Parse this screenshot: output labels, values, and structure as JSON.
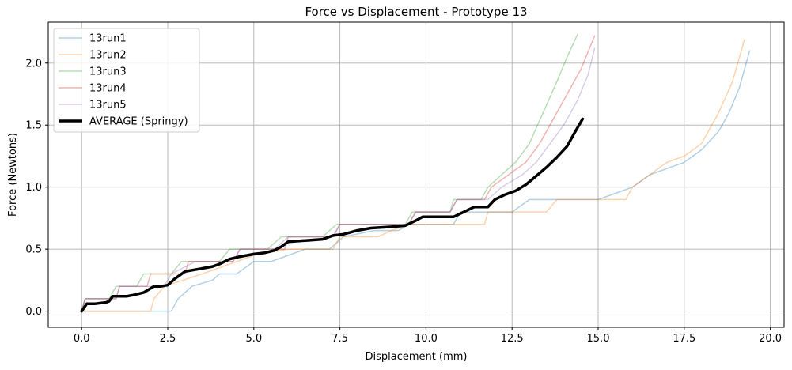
{
  "chart_data": {
    "type": "line",
    "title": "Force vs Displacement - Prototype 13",
    "xlabel": "Displacement (mm)",
    "ylabel": "Force (Newtons)",
    "xlim": [
      -0.97,
      20.4
    ],
    "ylim": [
      -0.13,
      2.33
    ],
    "xticks": [
      0.0,
      2.5,
      5.0,
      7.5,
      10.0,
      12.5,
      15.0,
      17.5,
      20.0
    ],
    "xtick_labels": [
      "0.0",
      "2.5",
      "5.0",
      "7.5",
      "10.0",
      "12.5",
      "15.0",
      "17.5",
      "20.0"
    ],
    "yticks": [
      0.0,
      0.5,
      1.0,
      1.5,
      2.0
    ],
    "ytick_labels": [
      "0.0",
      "0.5",
      "1.0",
      "1.5",
      "2.0"
    ],
    "grid": true,
    "legend_position": "top-left",
    "series": [
      {
        "name": "13run1",
        "color": "#1f77b4",
        "opacity": 0.35,
        "width": 1.5,
        "points": [
          [
            0,
            0
          ],
          [
            0.3,
            0
          ],
          [
            1.2,
            0
          ],
          [
            2.6,
            0
          ],
          [
            2.8,
            0.1
          ],
          [
            3.2,
            0.2
          ],
          [
            3.8,
            0.25
          ],
          [
            4.0,
            0.3
          ],
          [
            4.5,
            0.3
          ],
          [
            5.0,
            0.4
          ],
          [
            5.5,
            0.4
          ],
          [
            6.0,
            0.45
          ],
          [
            6.5,
            0.5
          ],
          [
            7.2,
            0.5
          ],
          [
            7.6,
            0.6
          ],
          [
            8.5,
            0.65
          ],
          [
            9.2,
            0.65
          ],
          [
            9.5,
            0.7
          ],
          [
            10.8,
            0.7
          ],
          [
            11.0,
            0.8
          ],
          [
            12.5,
            0.8
          ],
          [
            13.0,
            0.9
          ],
          [
            15.0,
            0.9
          ],
          [
            15.5,
            0.95
          ],
          [
            16.0,
            1.0
          ],
          [
            16.5,
            1.1
          ],
          [
            17.0,
            1.15
          ],
          [
            17.5,
            1.2
          ],
          [
            18.0,
            1.3
          ],
          [
            18.5,
            1.45
          ],
          [
            18.8,
            1.6
          ],
          [
            19.1,
            1.8
          ],
          [
            19.4,
            2.1
          ]
        ]
      },
      {
        "name": "13run2",
        "color": "#ff7f0e",
        "opacity": 0.35,
        "width": 1.5,
        "points": [
          [
            0,
            0
          ],
          [
            0.4,
            0.0
          ],
          [
            0.7,
            0.0
          ],
          [
            1.2,
            0
          ],
          [
            2.0,
            0
          ],
          [
            2.1,
            0.1
          ],
          [
            2.4,
            0.2
          ],
          [
            3.5,
            0.3
          ],
          [
            4.5,
            0.4
          ],
          [
            5.0,
            0.45
          ],
          [
            6.0,
            0.5
          ],
          [
            7.3,
            0.5
          ],
          [
            7.5,
            0.6
          ],
          [
            8.6,
            0.6
          ],
          [
            9.0,
            0.65
          ],
          [
            9.5,
            0.7
          ],
          [
            10.6,
            0.7
          ],
          [
            11.0,
            0.7
          ],
          [
            11.7,
            0.7
          ],
          [
            11.8,
            0.8
          ],
          [
            13.5,
            0.8
          ],
          [
            13.8,
            0.9
          ],
          [
            15.8,
            0.9
          ],
          [
            16.0,
            1.0
          ],
          [
            16.5,
            1.1
          ],
          [
            17.0,
            1.2
          ],
          [
            17.5,
            1.25
          ],
          [
            18.0,
            1.35
          ],
          [
            18.5,
            1.6
          ],
          [
            18.9,
            1.85
          ],
          [
            19.25,
            2.19
          ]
        ]
      },
      {
        "name": "13run3",
        "color": "#2ca02c",
        "opacity": 0.35,
        "width": 1.5,
        "points": [
          [
            0,
            0
          ],
          [
            0.1,
            0.1
          ],
          [
            0.8,
            0.1
          ],
          [
            1.0,
            0.2
          ],
          [
            1.6,
            0.2
          ],
          [
            1.8,
            0.3
          ],
          [
            2.6,
            0.3
          ],
          [
            2.9,
            0.4
          ],
          [
            4.0,
            0.4
          ],
          [
            4.3,
            0.5
          ],
          [
            5.4,
            0.5
          ],
          [
            5.8,
            0.6
          ],
          [
            7.0,
            0.6
          ],
          [
            7.4,
            0.7
          ],
          [
            9.4,
            0.7
          ],
          [
            9.6,
            0.8
          ],
          [
            10.7,
            0.8
          ],
          [
            10.8,
            0.9
          ],
          [
            11.6,
            0.9
          ],
          [
            11.8,
            1.0
          ],
          [
            12.2,
            1.1
          ],
          [
            12.6,
            1.2
          ],
          [
            13.0,
            1.35
          ],
          [
            13.4,
            1.6
          ],
          [
            13.8,
            1.85
          ],
          [
            14.1,
            2.05
          ],
          [
            14.4,
            2.23
          ]
        ]
      },
      {
        "name": "13run4",
        "color": "#d62728",
        "opacity": 0.35,
        "width": 1.5,
        "points": [
          [
            0,
            0
          ],
          [
            0.1,
            0.1
          ],
          [
            1.0,
            0.1
          ],
          [
            1.1,
            0.2
          ],
          [
            1.9,
            0.2
          ],
          [
            2.0,
            0.3
          ],
          [
            3.0,
            0.3
          ],
          [
            3.1,
            0.4
          ],
          [
            4.4,
            0.4
          ],
          [
            4.6,
            0.5
          ],
          [
            5.9,
            0.5
          ],
          [
            6.0,
            0.6
          ],
          [
            7.3,
            0.6
          ],
          [
            7.5,
            0.7
          ],
          [
            9.5,
            0.7
          ],
          [
            9.7,
            0.8
          ],
          [
            10.7,
            0.8
          ],
          [
            10.9,
            0.9
          ],
          [
            11.7,
            0.9
          ],
          [
            11.9,
            1.0
          ],
          [
            12.4,
            1.1
          ],
          [
            12.9,
            1.2
          ],
          [
            13.3,
            1.35
          ],
          [
            13.7,
            1.55
          ],
          [
            14.1,
            1.75
          ],
          [
            14.5,
            1.95
          ],
          [
            14.9,
            2.22
          ]
        ]
      },
      {
        "name": "13run5",
        "color": "#9467bd",
        "opacity": 0.35,
        "width": 1.5,
        "points": [
          [
            0,
            0
          ],
          [
            0.1,
            0.1
          ],
          [
            1.0,
            0.1
          ],
          [
            1.1,
            0.2
          ],
          [
            2.4,
            0.2
          ],
          [
            2.6,
            0.3
          ],
          [
            3.3,
            0.4
          ],
          [
            4.4,
            0.4
          ],
          [
            4.6,
            0.5
          ],
          [
            5.6,
            0.5
          ],
          [
            6.0,
            0.6
          ],
          [
            7.3,
            0.6
          ],
          [
            7.5,
            0.7
          ],
          [
            9.5,
            0.7
          ],
          [
            9.7,
            0.8
          ],
          [
            10.7,
            0.8
          ],
          [
            10.9,
            0.9
          ],
          [
            11.8,
            0.9
          ],
          [
            12.2,
            1.0
          ],
          [
            12.8,
            1.1
          ],
          [
            13.2,
            1.2
          ],
          [
            13.6,
            1.35
          ],
          [
            14.0,
            1.5
          ],
          [
            14.4,
            1.7
          ],
          [
            14.7,
            1.9
          ],
          [
            14.9,
            2.12
          ]
        ]
      },
      {
        "name": "AVERAGE (Springy)",
        "color": "#000000",
        "opacity": 1,
        "width": 3.5,
        "points": [
          [
            0,
            0
          ],
          [
            0.15,
            0.06
          ],
          [
            0.4,
            0.06
          ],
          [
            0.7,
            0.07
          ],
          [
            0.8,
            0.08
          ],
          [
            0.9,
            0.12
          ],
          [
            1.3,
            0.12
          ],
          [
            1.5,
            0.13
          ],
          [
            1.8,
            0.15
          ],
          [
            2.1,
            0.2
          ],
          [
            2.3,
            0.2
          ],
          [
            2.5,
            0.21
          ],
          [
            2.7,
            0.26
          ],
          [
            3.0,
            0.32
          ],
          [
            3.4,
            0.34
          ],
          [
            3.8,
            0.36
          ],
          [
            4.0,
            0.38
          ],
          [
            4.3,
            0.42
          ],
          [
            4.6,
            0.44
          ],
          [
            5.0,
            0.46
          ],
          [
            5.3,
            0.47
          ],
          [
            5.6,
            0.49
          ],
          [
            5.8,
            0.52
          ],
          [
            6.0,
            0.56
          ],
          [
            6.5,
            0.57
          ],
          [
            7.0,
            0.58
          ],
          [
            7.3,
            0.61
          ],
          [
            7.6,
            0.62
          ],
          [
            8.0,
            0.65
          ],
          [
            8.4,
            0.67
          ],
          [
            9.0,
            0.68
          ],
          [
            9.4,
            0.69
          ],
          [
            9.7,
            0.73
          ],
          [
            9.9,
            0.76
          ],
          [
            10.8,
            0.76
          ],
          [
            11.1,
            0.8
          ],
          [
            11.4,
            0.84
          ],
          [
            11.8,
            0.84
          ],
          [
            12.0,
            0.9
          ],
          [
            12.3,
            0.94
          ],
          [
            12.6,
            0.97
          ],
          [
            12.9,
            1.02
          ],
          [
            13.2,
            1.09
          ],
          [
            13.5,
            1.16
          ],
          [
            13.8,
            1.24
          ],
          [
            14.1,
            1.33
          ],
          [
            14.3,
            1.43
          ],
          [
            14.55,
            1.55
          ]
        ]
      }
    ]
  }
}
